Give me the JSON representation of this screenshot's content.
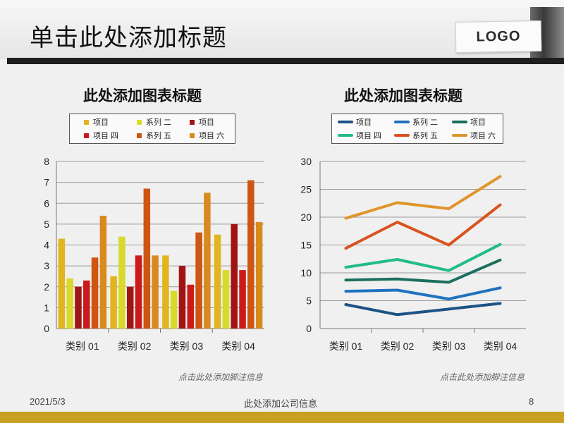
{
  "slide": {
    "title": "单击此处添加标题",
    "logo": "LOGO",
    "footer_date": "2021/5/3",
    "footer_company": "此处添加公司信息",
    "page_number": "8"
  },
  "left_chart": {
    "title": "此处添加图表标题",
    "footnote": "点击此处添加脚注信息",
    "legend": [
      "项目",
      "系列 二",
      "项目",
      "项目 四",
      "系列 五",
      "项目 六"
    ]
  },
  "right_chart": {
    "title": "此处添加图表标题",
    "footnote": "点击此处添加脚注信息",
    "legend": [
      "项目",
      "系列 二",
      "项目",
      "项目 四",
      "系列 五",
      "项目 六"
    ]
  },
  "colors": {
    "bar_series": [
      "#e1b520",
      "#d9d92a",
      "#a11414",
      "#cc1a1a",
      "#cf5512",
      "#d98a1e"
    ],
    "line_series": [
      "#1d5286",
      "#1f72bf",
      "#1b6f5e",
      "#22bb8c",
      "#d9531e",
      "#e0952a"
    ],
    "title_bar": "#1e1e1e",
    "bottom_bar": "#c8a024"
  },
  "chart_data": [
    {
      "type": "bar",
      "categories": [
        "类别 01",
        "类别 02",
        "类别 03",
        "类别 04"
      ],
      "series": [
        {
          "name": "项目",
          "values": [
            4.3,
            2.5,
            3.5,
            4.5
          ]
        },
        {
          "name": "系列 二",
          "values": [
            2.4,
            4.4,
            1.8,
            2.8
          ]
        },
        {
          "name": "项目",
          "values": [
            2.0,
            2.0,
            3.0,
            5.0
          ]
        },
        {
          "name": "项目 四",
          "values": [
            2.3,
            3.5,
            2.1,
            2.8
          ]
        },
        {
          "name": "系列 五",
          "values": [
            3.4,
            6.7,
            4.6,
            7.1
          ]
        },
        {
          "name": "项目 六",
          "values": [
            5.4,
            3.5,
            6.5,
            5.1
          ]
        }
      ],
      "ylim": [
        0,
        8
      ],
      "yticks": [
        "0",
        "1",
        "2",
        "3",
        "4",
        "5",
        "6",
        "7",
        "8"
      ],
      "grid": true,
      "legend_placement": "top"
    },
    {
      "type": "line",
      "categories": [
        "类别 01",
        "类别 02",
        "类别 03",
        "类别 04"
      ],
      "series": [
        {
          "name": "项目",
          "values": [
            4.3,
            2.5,
            3.5,
            4.5
          ]
        },
        {
          "name": "系列 二",
          "values": [
            6.7,
            6.9,
            5.3,
            7.3
          ]
        },
        {
          "name": "项目",
          "values": [
            8.7,
            8.9,
            8.3,
            12.3
          ]
        },
        {
          "name": "项目 四",
          "values": [
            11.0,
            12.4,
            10.4,
            15.1
          ]
        },
        {
          "name": "系列 五",
          "values": [
            14.4,
            19.1,
            15.0,
            22.2
          ]
        },
        {
          "name": "项目 六",
          "values": [
            19.8,
            22.6,
            21.5,
            27.3
          ]
        }
      ],
      "ylim": [
        0,
        30
      ],
      "yticks": [
        "0",
        "5",
        "10",
        "15",
        "20",
        "25",
        "30"
      ],
      "grid": true,
      "legend_placement": "top"
    }
  ]
}
